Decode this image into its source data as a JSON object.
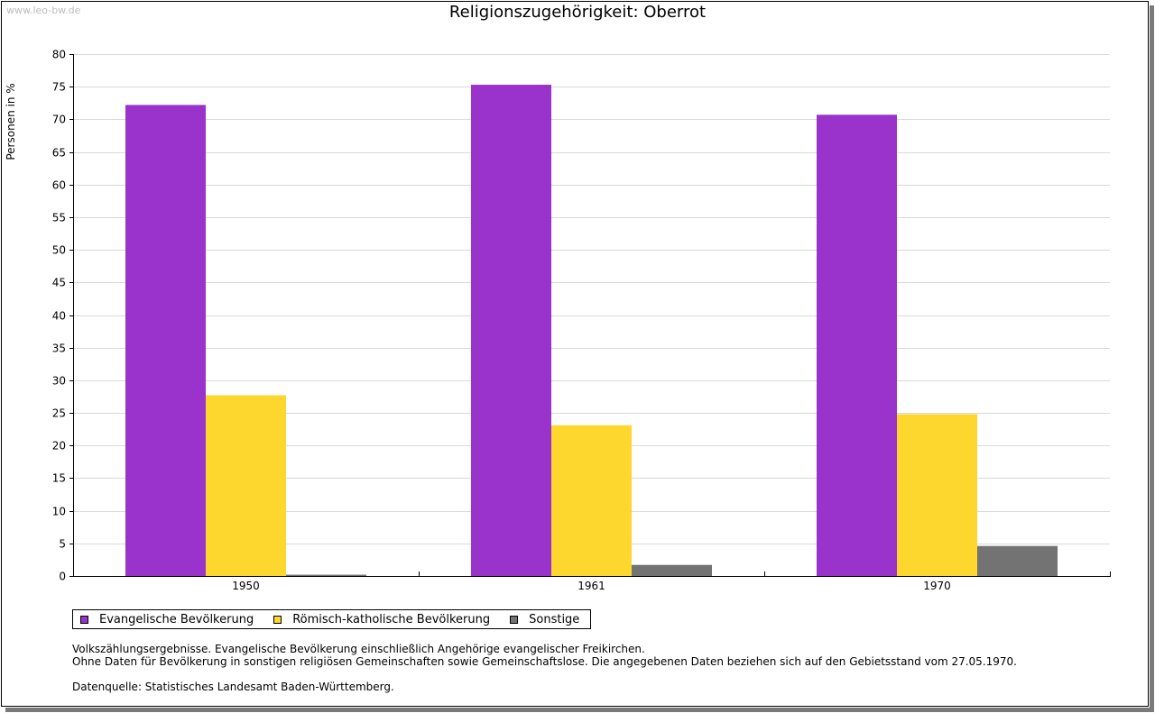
{
  "watermark": "www.leo-bw.de",
  "chart_data": {
    "type": "bar",
    "title": "Religionszugehörigkeit: Oberrot",
    "xlabel": "",
    "ylabel": "Personen in %",
    "ylim": [
      0,
      80
    ],
    "yticks": [
      0,
      5,
      10,
      15,
      20,
      25,
      30,
      35,
      40,
      45,
      50,
      55,
      60,
      65,
      70,
      75,
      80
    ],
    "grid": true,
    "legend_position": "bottom-left",
    "categories": [
      "1950",
      "1961",
      "1970"
    ],
    "series": [
      {
        "name": "Evangelische Bevölkerung",
        "color": "#9933cc",
        "values": [
          72.2,
          75.3,
          70.7
        ]
      },
      {
        "name": "Römisch-katholische Bevölkerung",
        "color": "#fdd62e",
        "values": [
          27.7,
          23.1,
          24.8
        ]
      },
      {
        "name": "Sonstige",
        "color": "#737373",
        "values": [
          0.2,
          1.7,
          4.6
        ]
      }
    ]
  },
  "notes": {
    "line1": "Volkszählungsergebnisse. Evangelische Bevölkerung einschließlich Angehörige evangelischer Freikirchen.",
    "line2": "Ohne Daten für Bevölkerung in sonstigen religiösen Gemeinschaften sowie Gemeinschaftslose. Die angegebenen Daten beziehen sich auf den Gebietsstand vom 27.05.1970.",
    "source": "Datenquelle: Statistisches Landesamt Baden-Württemberg."
  }
}
